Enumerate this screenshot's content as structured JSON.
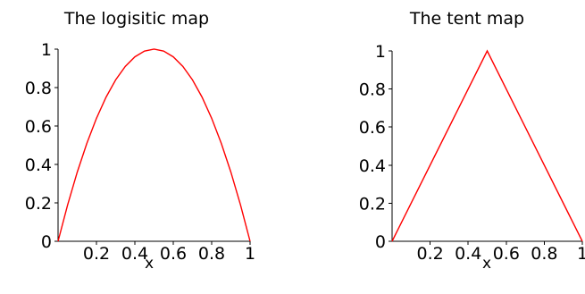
{
  "chart_data": [
    {
      "type": "line",
      "title": "The logisitic map",
      "xlabel": "x",
      "ylabel": "",
      "xlim": [
        0,
        1
      ],
      "ylim": [
        0,
        1
      ],
      "xticks": [
        "0.2",
        "0.4",
        "0.6",
        "0.8",
        "1"
      ],
      "yticks": [
        "0",
        "0.2",
        "0.4",
        "0.6",
        "0.8",
        "1"
      ],
      "color": "#ff0000",
      "series": [
        {
          "x": [
            0,
            0.05,
            0.1,
            0.15,
            0.2,
            0.25,
            0.3,
            0.35,
            0.4,
            0.45,
            0.5,
            0.55,
            0.6,
            0.65,
            0.7,
            0.75,
            0.8,
            0.85,
            0.9,
            0.95,
            1
          ],
          "y": [
            0,
            0.19,
            0.36,
            0.51,
            0.64,
            0.75,
            0.84,
            0.91,
            0.96,
            0.99,
            1,
            0.99,
            0.96,
            0.91,
            0.84,
            0.75,
            0.64,
            0.51,
            0.36,
            0.19,
            0
          ]
        }
      ]
    },
    {
      "type": "line",
      "title": "The tent map",
      "xlabel": "x",
      "ylabel": "",
      "xlim": [
        0,
        1
      ],
      "ylim": [
        0,
        1
      ],
      "xticks": [
        "0.2",
        "0.4",
        "0.6",
        "0.8",
        "1"
      ],
      "yticks": [
        "0",
        "0.2",
        "0.4",
        "0.6",
        "0.8",
        "1"
      ],
      "color": "#ff0000",
      "series": [
        {
          "x": [
            0,
            0.5,
            1
          ],
          "y": [
            0,
            1,
            0
          ]
        }
      ]
    }
  ]
}
